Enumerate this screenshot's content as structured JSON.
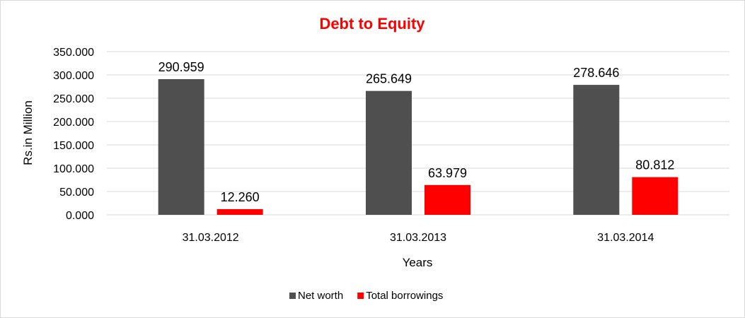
{
  "chart_data": {
    "type": "bar",
    "title": "Debt to Equity",
    "title_color": "#ff0000",
    "xlabel": "Years",
    "ylabel": "Rs.in Million",
    "categories": [
      "31.03.2012",
      "31.03.2013",
      "31.03.2014"
    ],
    "series": [
      {
        "name": "Net worth",
        "color": "#4f4f4f",
        "values": [
          290.959,
          265.649,
          278.646
        ],
        "labels": [
          "290.959",
          "265.649",
          "278.646"
        ]
      },
      {
        "name": "Total borrowings",
        "color": "#ff0000",
        "values": [
          12.26,
          63.979,
          80.812
        ],
        "labels": [
          "12.260",
          "63.979",
          "80.812"
        ]
      }
    ],
    "ylim": [
      0,
      350
    ],
    "yticks": [
      "0.000",
      "50.000",
      "100.000",
      "150.000",
      "200.000",
      "250.000",
      "300.000",
      "350.000"
    ],
    "grid": true,
    "legend": "bottom"
  }
}
